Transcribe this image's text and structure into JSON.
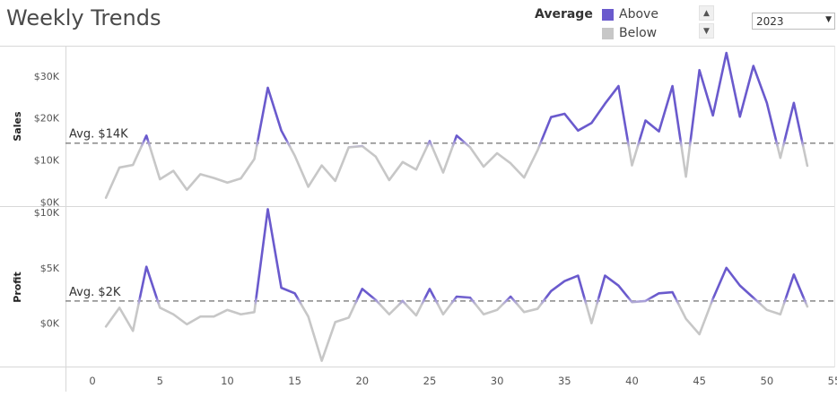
{
  "title": "Weekly Trends",
  "legend": {
    "title": "Average",
    "items": [
      {
        "label": "Above",
        "color": "#6a5acd"
      },
      {
        "label": "Below",
        "color": "#c7c7c7"
      }
    ]
  },
  "scroll": {
    "up_icon": "chevron-up-icon",
    "down_icon": "chevron-down-icon"
  },
  "year_filter": {
    "selected": "2023"
  },
  "chart_data": {
    "type": "line",
    "x": [
      1,
      2,
      3,
      4,
      5,
      6,
      7,
      8,
      9,
      10,
      11,
      12,
      13,
      14,
      15,
      16,
      17,
      18,
      19,
      20,
      21,
      22,
      23,
      24,
      25,
      26,
      27,
      28,
      29,
      30,
      31,
      32,
      33,
      34,
      35,
      36,
      37,
      38,
      39,
      40,
      41,
      42,
      43,
      44,
      45,
      46,
      47,
      48,
      49,
      50,
      51,
      52,
      53
    ],
    "xlim": [
      -2,
      55
    ],
    "xticks": [
      "0",
      "5",
      "10",
      "15",
      "20",
      "25",
      "30",
      "35",
      "40",
      "45",
      "50",
      "55"
    ],
    "colors": {
      "above": "#6a5acd",
      "below": "#c7c7c7"
    },
    "panes": [
      {
        "ylabel": "Sales",
        "yticks": [
          "$0K",
          "$10K",
          "$20K",
          "$30K"
        ],
        "ylim": [
          -1000,
          37000
        ],
        "average": 14000,
        "average_label": "Avg. $14K",
        "values": [
          1000,
          8200,
          8800,
          15800,
          5400,
          7400,
          2900,
          6600,
          5700,
          4600,
          5600,
          10200,
          27200,
          17000,
          11000,
          3600,
          8700,
          5000,
          13000,
          13300,
          10800,
          5200,
          9500,
          7700,
          14500,
          7000,
          15800,
          13000,
          8400,
          11600,
          9200,
          5800,
          12300,
          20200,
          21000,
          17000,
          18800,
          23400,
          27600,
          8700,
          19400,
          16800,
          27600,
          6000,
          31400,
          20600,
          35500,
          20300,
          32400,
          23600,
          10500,
          23600,
          8600
        ]
      },
      {
        "ylabel": "Profit",
        "yticks": [
          "$0K",
          "$5K",
          "$10K"
        ],
        "ylim": [
          -4000,
          10500
        ],
        "average": 2000,
        "average_label": "Avg. $2K",
        "values": [
          -300,
          1400,
          -700,
          5100,
          1400,
          800,
          -100,
          600,
          600,
          1200,
          800,
          1000,
          10300,
          3200,
          2700,
          600,
          -3400,
          100,
          500,
          3100,
          2100,
          800,
          2000,
          700,
          3100,
          800,
          2400,
          2300,
          800,
          1200,
          2400,
          1000,
          1300,
          2900,
          3800,
          4300,
          0,
          4300,
          3400,
          1900,
          2000,
          2700,
          2800,
          400,
          -1000,
          2200,
          5000,
          3400,
          2300,
          1200,
          800,
          4400,
          1500
        ]
      }
    ]
  }
}
